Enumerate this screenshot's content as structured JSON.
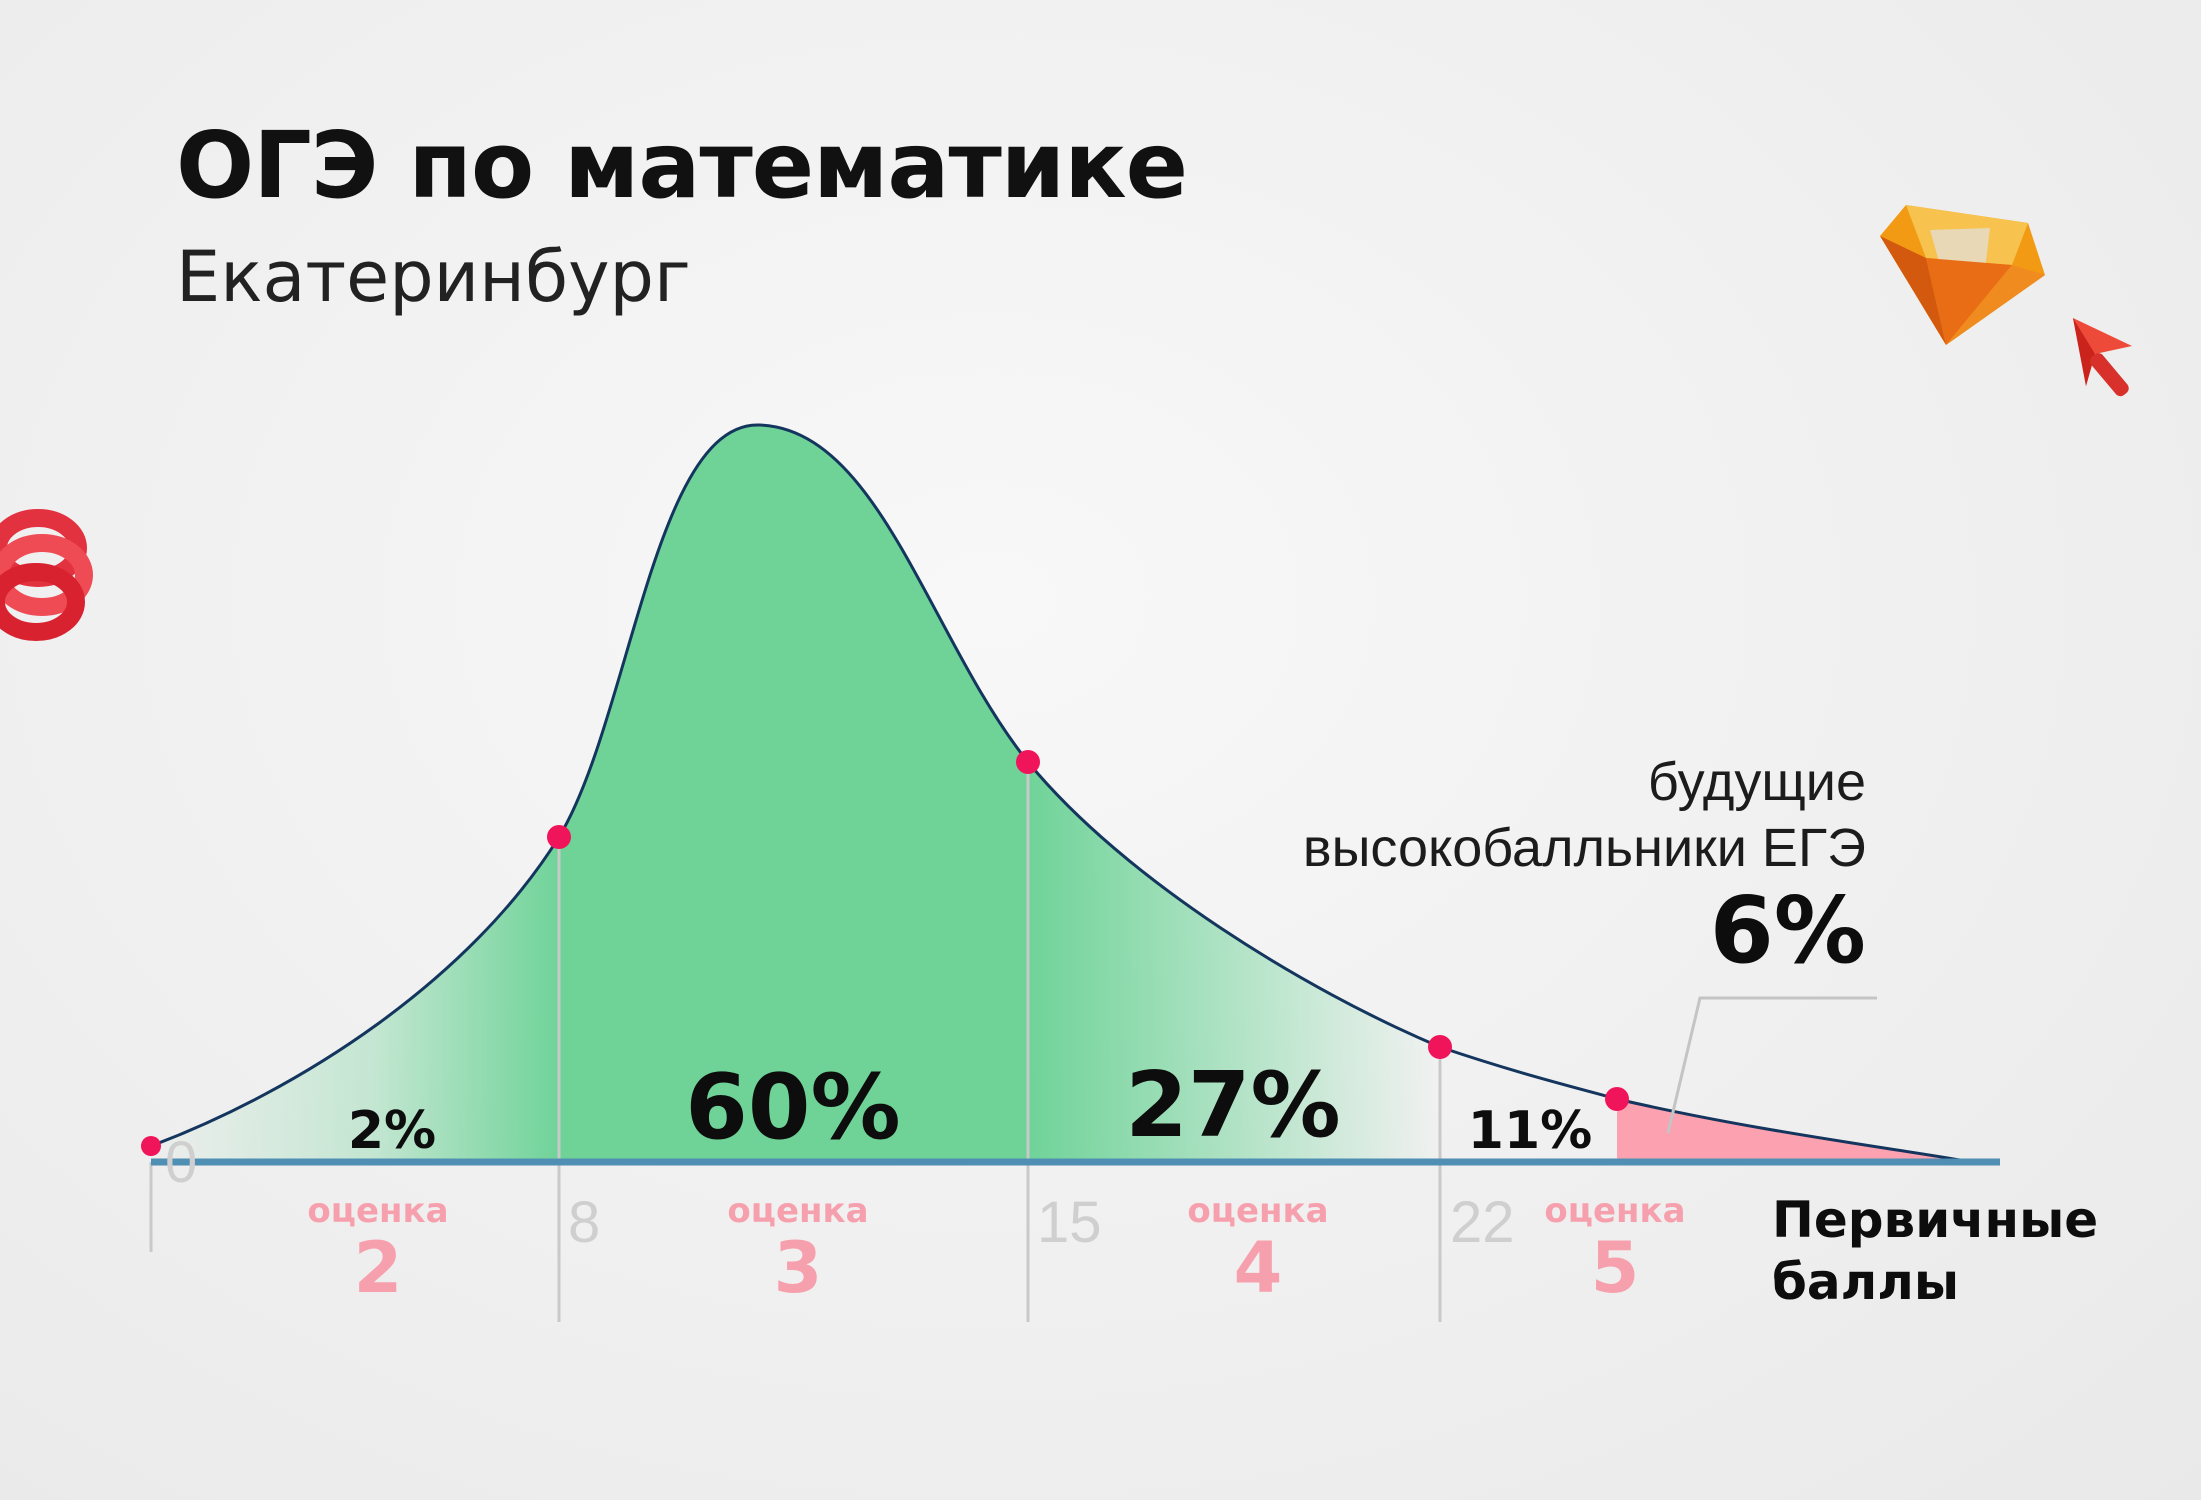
{
  "header": {
    "title": "ОГЭ по математике",
    "subtitle": "Екатеринбург"
  },
  "chart_data": {
    "type": "area",
    "title": "ОГЭ по математике",
    "subtitle": "Екатеринбург",
    "xlabel": "Первичные баллы",
    "x_ticks": [
      "0",
      "8",
      "15",
      "22"
    ],
    "segments": [
      {
        "grade_label": "оценка",
        "grade": "2",
        "percent": "2%",
        "from": 0,
        "to": 8
      },
      {
        "grade_label": "оценка",
        "grade": "3",
        "percent": "60%",
        "from": 8,
        "to": 15
      },
      {
        "grade_label": "оценка",
        "grade": "4",
        "percent": "27%",
        "from": 15,
        "to": 22
      },
      {
        "grade_label": "оценка",
        "grade": "5",
        "percent": "11%",
        "from": 22,
        "to": 31
      }
    ],
    "highlight": {
      "label_line1": "будущие",
      "label_line2": "высокобалльники ЕГЭ",
      "percent": "6%"
    },
    "colors": {
      "curve": "#14365e",
      "fill": "#6fd398",
      "axis": "#4f8fb3",
      "marker": "#f0145a",
      "grade": "#f7a0ad",
      "highlight": "#fca1b0"
    }
  },
  "decorations": [
    "spring-icon",
    "diamond-icon",
    "cursor-icon"
  ]
}
